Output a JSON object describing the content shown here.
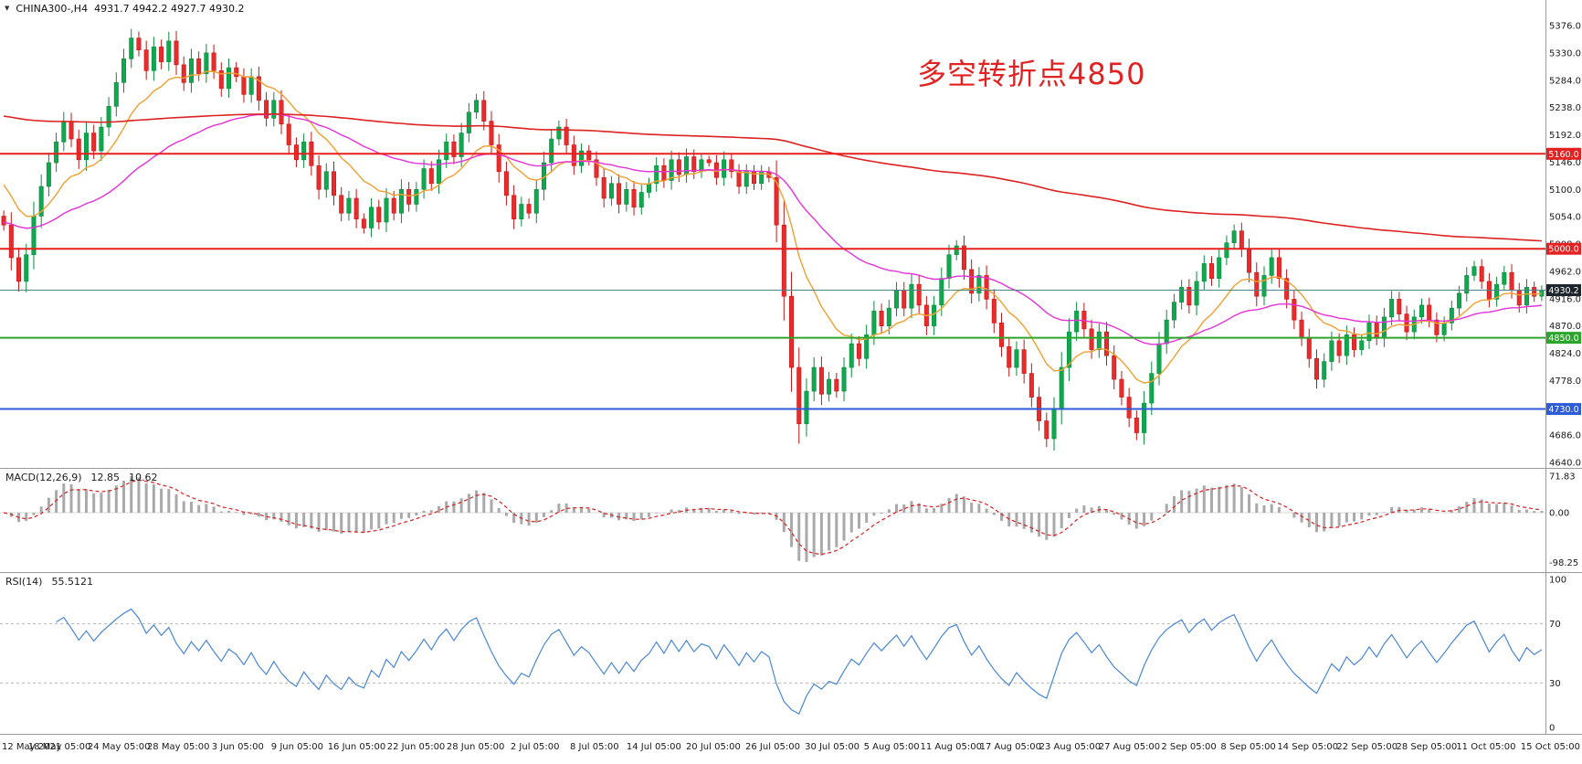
{
  "header": {
    "collapse_icon": "▼",
    "symbol": "CHINA300-,H4",
    "ohlc": "4931.7 4942.2 4927.7 4930.2"
  },
  "annotation": {
    "text": "多空转折点4850"
  },
  "indicators": {
    "macd": {
      "name": "MACD(12,26,9)",
      "value1": "12.85",
      "value2": "10.62"
    },
    "rsi": {
      "name": "RSI(14)",
      "value": "55.5121"
    }
  },
  "chart_data": {
    "type": "candlestick",
    "title": "CHINA300- H4",
    "price_axis": {
      "ticks": [
        "5376.0",
        "5330.0",
        "5284.0",
        "5238.0",
        "5192.0",
        "5146.0",
        "5100.0",
        "5054.0",
        "5008.0",
        "4962.0",
        "4916.0",
        "4870.0",
        "4824.0",
        "4778.0",
        "4732.0",
        "4686.0",
        "4640.0"
      ],
      "top_tick": 5376,
      "bottom_tick": 4640
    },
    "macd_axis": {
      "ticks": [
        "71.83",
        "0.00",
        "-98.25"
      ],
      "values": [
        71.83,
        0,
        -98.25
      ]
    },
    "rsi_axis": {
      "ticks": [
        "100",
        "70",
        "30",
        "0"
      ],
      "values": [
        100,
        70,
        30,
        0
      ],
      "guide_levels": [
        70,
        30
      ]
    },
    "time_axis": [
      "12 May 2021",
      "18 May 05:00",
      "24 May 05:00",
      "28 May 05:00",
      "3 Jun 05:00",
      "9 Jun 05:00",
      "16 Jun 05:00",
      "22 Jun 05:00",
      "28 Jun 05:00",
      "2 Jul 05:00",
      "8 Jul 05:00",
      "14 Jul 05:00",
      "20 Jul 05:00",
      "26 Jul 05:00",
      "30 Jul 05:00",
      "5 Aug 05:00",
      "11 Aug 05:00",
      "17 Aug 05:00",
      "23 Aug 05:00",
      "27 Aug 05:00",
      "2 Sep 05:00",
      "8 Sep 05:00",
      "14 Sep 05:00",
      "22 Sep 05:00",
      "28 Sep 05:00",
      "11 Oct 05:00",
      "15 Oct 05:00"
    ],
    "candles": {
      "first_open": 5055,
      "closes": [
        5040,
        4985,
        4945,
        4990,
        5055,
        5105,
        5145,
        5180,
        5215,
        5185,
        5150,
        5195,
        5165,
        5205,
        5240,
        5280,
        5320,
        5355,
        5335,
        5300,
        5340,
        5315,
        5350,
        5310,
        5280,
        5320,
        5295,
        5330,
        5300,
        5270,
        5305,
        5290,
        5260,
        5290,
        5250,
        5220,
        5250,
        5210,
        5175,
        5150,
        5180,
        5140,
        5100,
        5130,
        5090,
        5060,
        5085,
        5050,
        5035,
        5070,
        5045,
        5085,
        5060,
        5100,
        5075,
        5100,
        5135,
        5110,
        5150,
        5180,
        5155,
        5195,
        5230,
        5250,
        5215,
        5175,
        5130,
        5090,
        5050,
        5075,
        5060,
        5100,
        5145,
        5185,
        5205,
        5175,
        5140,
        5165,
        5150,
        5120,
        5085,
        5110,
        5075,
        5100,
        5070,
        5095,
        5110,
        5140,
        5115,
        5150,
        5125,
        5155,
        5130,
        5150,
        5145,
        5120,
        5150,
        5130,
        5105,
        5130,
        5110,
        5130,
        5120,
        5040,
        4920,
        4800,
        4705,
        4760,
        4800,
        4755,
        4780,
        4760,
        4800,
        4840,
        4815,
        4855,
        4895,
        4870,
        4900,
        4930,
        4900,
        4940,
        4905,
        4870,
        4905,
        4950,
        4990,
        5005,
        4965,
        4925,
        4955,
        4915,
        4875,
        4835,
        4800,
        4830,
        4790,
        4750,
        4710,
        4680,
        4730,
        4800,
        4860,
        4895,
        4865,
        4830,
        4860,
        4820,
        4780,
        4750,
        4715,
        4690,
        4740,
        4790,
        4840,
        4880,
        4910,
        4935,
        4905,
        4945,
        4975,
        4950,
        4985,
        5010,
        5030,
        5000,
        4960,
        4920,
        4955,
        4985,
        4950,
        4915,
        4880,
        4850,
        4815,
        4780,
        4810,
        4845,
        4820,
        4855,
        4830,
        4845,
        4875,
        4850,
        4885,
        4915,
        4890,
        4860,
        4885,
        4905,
        4880,
        4855,
        4875,
        4900,
        4925,
        4955,
        4970,
        4945,
        4915,
        4940,
        4960,
        4930,
        4905,
        4935,
        4920,
        4930.2
      ]
    },
    "moving_averages": [
      {
        "name": "ma-fast",
        "color": "#f0a030",
        "alpha": 0.154,
        "seed": 5120
      },
      {
        "name": "ma-mid",
        "color": "#e431d8",
        "alpha": 0.05,
        "seed": 5045
      },
      {
        "name": "ma-slow",
        "color": "#dd2222",
        "alpha": 0.008,
        "seed": 5225
      }
    ],
    "levels": [
      {
        "label": "5160.0",
        "value": 5160,
        "color": "#e62020",
        "width": 2
      },
      {
        "label": "5000.0",
        "value": 5000,
        "color": "#e62020",
        "width": 2
      },
      {
        "label": "4850.0",
        "value": 4850,
        "color": "#2ca52c",
        "width": 2
      },
      {
        "label": "4730.0",
        "value": 4730,
        "color": "#2e5bd7",
        "width": 2
      }
    ],
    "current_price": {
      "label": "4930.2",
      "value": 4930.2,
      "line_color": "#4d8585",
      "box_color": "#1c242c"
    },
    "colors": {
      "bull": "#0fa84e",
      "bull_stroke": "#0a8a3d",
      "bear": "#ea2b2b",
      "bear_stroke": "#c01616",
      "macd_hist": "#a9a9a9",
      "macd_signal": "#d42222",
      "rsi_line": "#4a86d8",
      "annotation": "#e12222",
      "axis_text": "#1a1a1a",
      "separator": "#9a9a9a",
      "guide": "#b5b5b5",
      "zero_line": "#d8d8d8"
    }
  }
}
